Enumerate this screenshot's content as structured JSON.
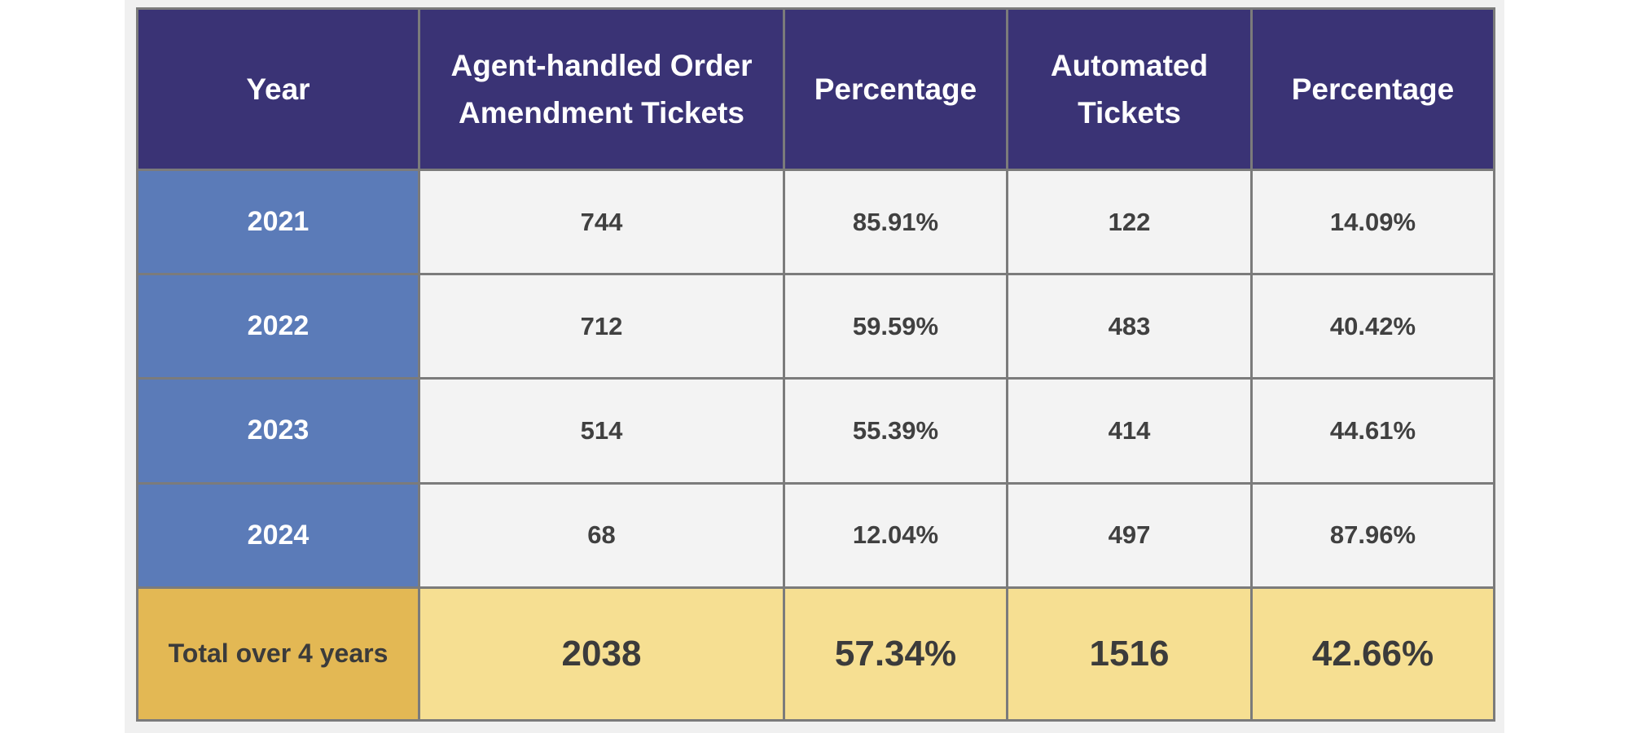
{
  "table": {
    "headers": [
      "Year",
      "Agent-handled Order Amendment Tickets",
      "Percentage",
      "Automated Tickets",
      "Percentage"
    ],
    "rows": [
      {
        "year": "2021",
        "agent": "744",
        "agent_pct": "85.91%",
        "automated": "122",
        "automated_pct": "14.09%"
      },
      {
        "year": "2022",
        "agent": "712",
        "agent_pct": "59.59%",
        "automated": "483",
        "automated_pct": "40.42%"
      },
      {
        "year": "2023",
        "agent": "514",
        "agent_pct": "55.39%",
        "automated": "414",
        "automated_pct": "44.61%"
      },
      {
        "year": "2024",
        "agent": "68",
        "agent_pct": "12.04%",
        "automated": "497",
        "automated_pct": "87.96%"
      }
    ],
    "total": {
      "label": "Total over 4 years",
      "agent": "2038",
      "agent_pct": "57.34%",
      "automated": "1516",
      "automated_pct": "42.66%"
    }
  },
  "colors": {
    "header": "#3a3375",
    "year_column": "#5b7bb8",
    "body_cells": "#f3f3f3",
    "total_label": "#e3b854",
    "total_cells": "#f6df92",
    "grid_lines": "#7b7b7b"
  }
}
